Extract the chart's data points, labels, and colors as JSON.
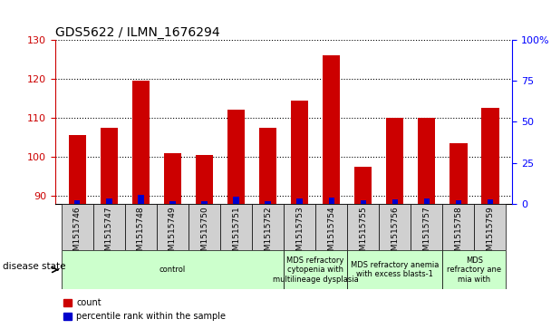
{
  "title": "GDS5622 / ILMN_1676294",
  "samples": [
    "GSM1515746",
    "GSM1515747",
    "GSM1515748",
    "GSM1515749",
    "GSM1515750",
    "GSM1515751",
    "GSM1515752",
    "GSM1515753",
    "GSM1515754",
    "GSM1515755",
    "GSM1515756",
    "GSM1515757",
    "GSM1515758",
    "GSM1515759"
  ],
  "count_values": [
    105.5,
    107.5,
    119.5,
    101.0,
    100.5,
    112.0,
    107.5,
    114.5,
    126.0,
    97.5,
    110.0,
    110.0,
    103.5,
    112.5
  ],
  "percentile_values": [
    2.5,
    3.5,
    5.5,
    1.5,
    1.5,
    4.5,
    1.5,
    3.5,
    4.0,
    2.0,
    3.0,
    3.5,
    2.0,
    3.0
  ],
  "ymin": 88,
  "ymax": 130,
  "yticks": [
    90,
    100,
    110,
    120,
    130
  ],
  "right_yticks": [
    0,
    25,
    50,
    75,
    100
  ],
  "bar_color_red": "#cc0000",
  "bar_color_blue": "#0000cc",
  "disease_groups": [
    {
      "label": "control",
      "start": 0,
      "end": 7
    },
    {
      "label": "MDS refractory\ncytopenia with\nmultilineage dysplasia",
      "start": 7,
      "end": 9
    },
    {
      "label": "MDS refractory anemia\nwith excess blasts-1",
      "start": 9,
      "end": 12
    },
    {
      "label": "MDS\nrefractory ane\nmia with",
      "start": 12,
      "end": 14
    }
  ],
  "disease_group_color": "#ccffcc",
  "xlabel_disease": "disease state",
  "legend_count": "count",
  "legend_percentile": "percentile rank within the sample",
  "bar_baseline": 88,
  "bar_width": 0.55,
  "blue_bar_width": 0.18
}
